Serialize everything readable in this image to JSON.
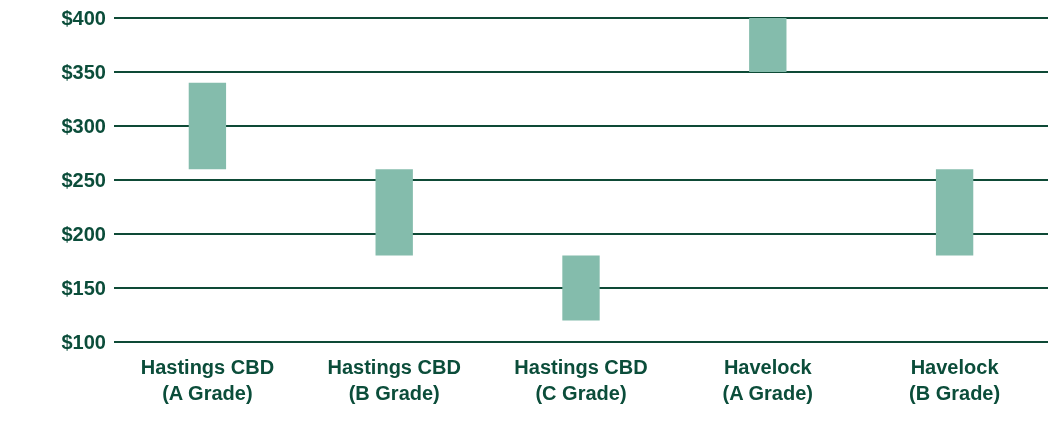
{
  "chart_data": {
    "type": "bar",
    "categories": [
      "Hastings CBD\n(A Grade)",
      "Hastings CBD\n(B Grade)",
      "Hastings CBD\n(C Grade)",
      "Havelock\n(A Grade)",
      "Havelock\n(B Grade)"
    ],
    "base": [
      260,
      180,
      120,
      350,
      180
    ],
    "values": [
      80,
      80,
      60,
      50,
      80
    ],
    "color": "#84bcac",
    "ylim": [
      100,
      400
    ],
    "yticks": [
      {
        "value": 100,
        "label": "$100"
      },
      {
        "value": 150,
        "label": "$150"
      },
      {
        "value": 200,
        "label": "$200"
      },
      {
        "value": 250,
        "label": "$250"
      },
      {
        "value": 300,
        "label": "$300"
      },
      {
        "value": 350,
        "label": "$350"
      },
      {
        "value": 400,
        "label": "$400"
      }
    ],
    "grid": "y"
  }
}
